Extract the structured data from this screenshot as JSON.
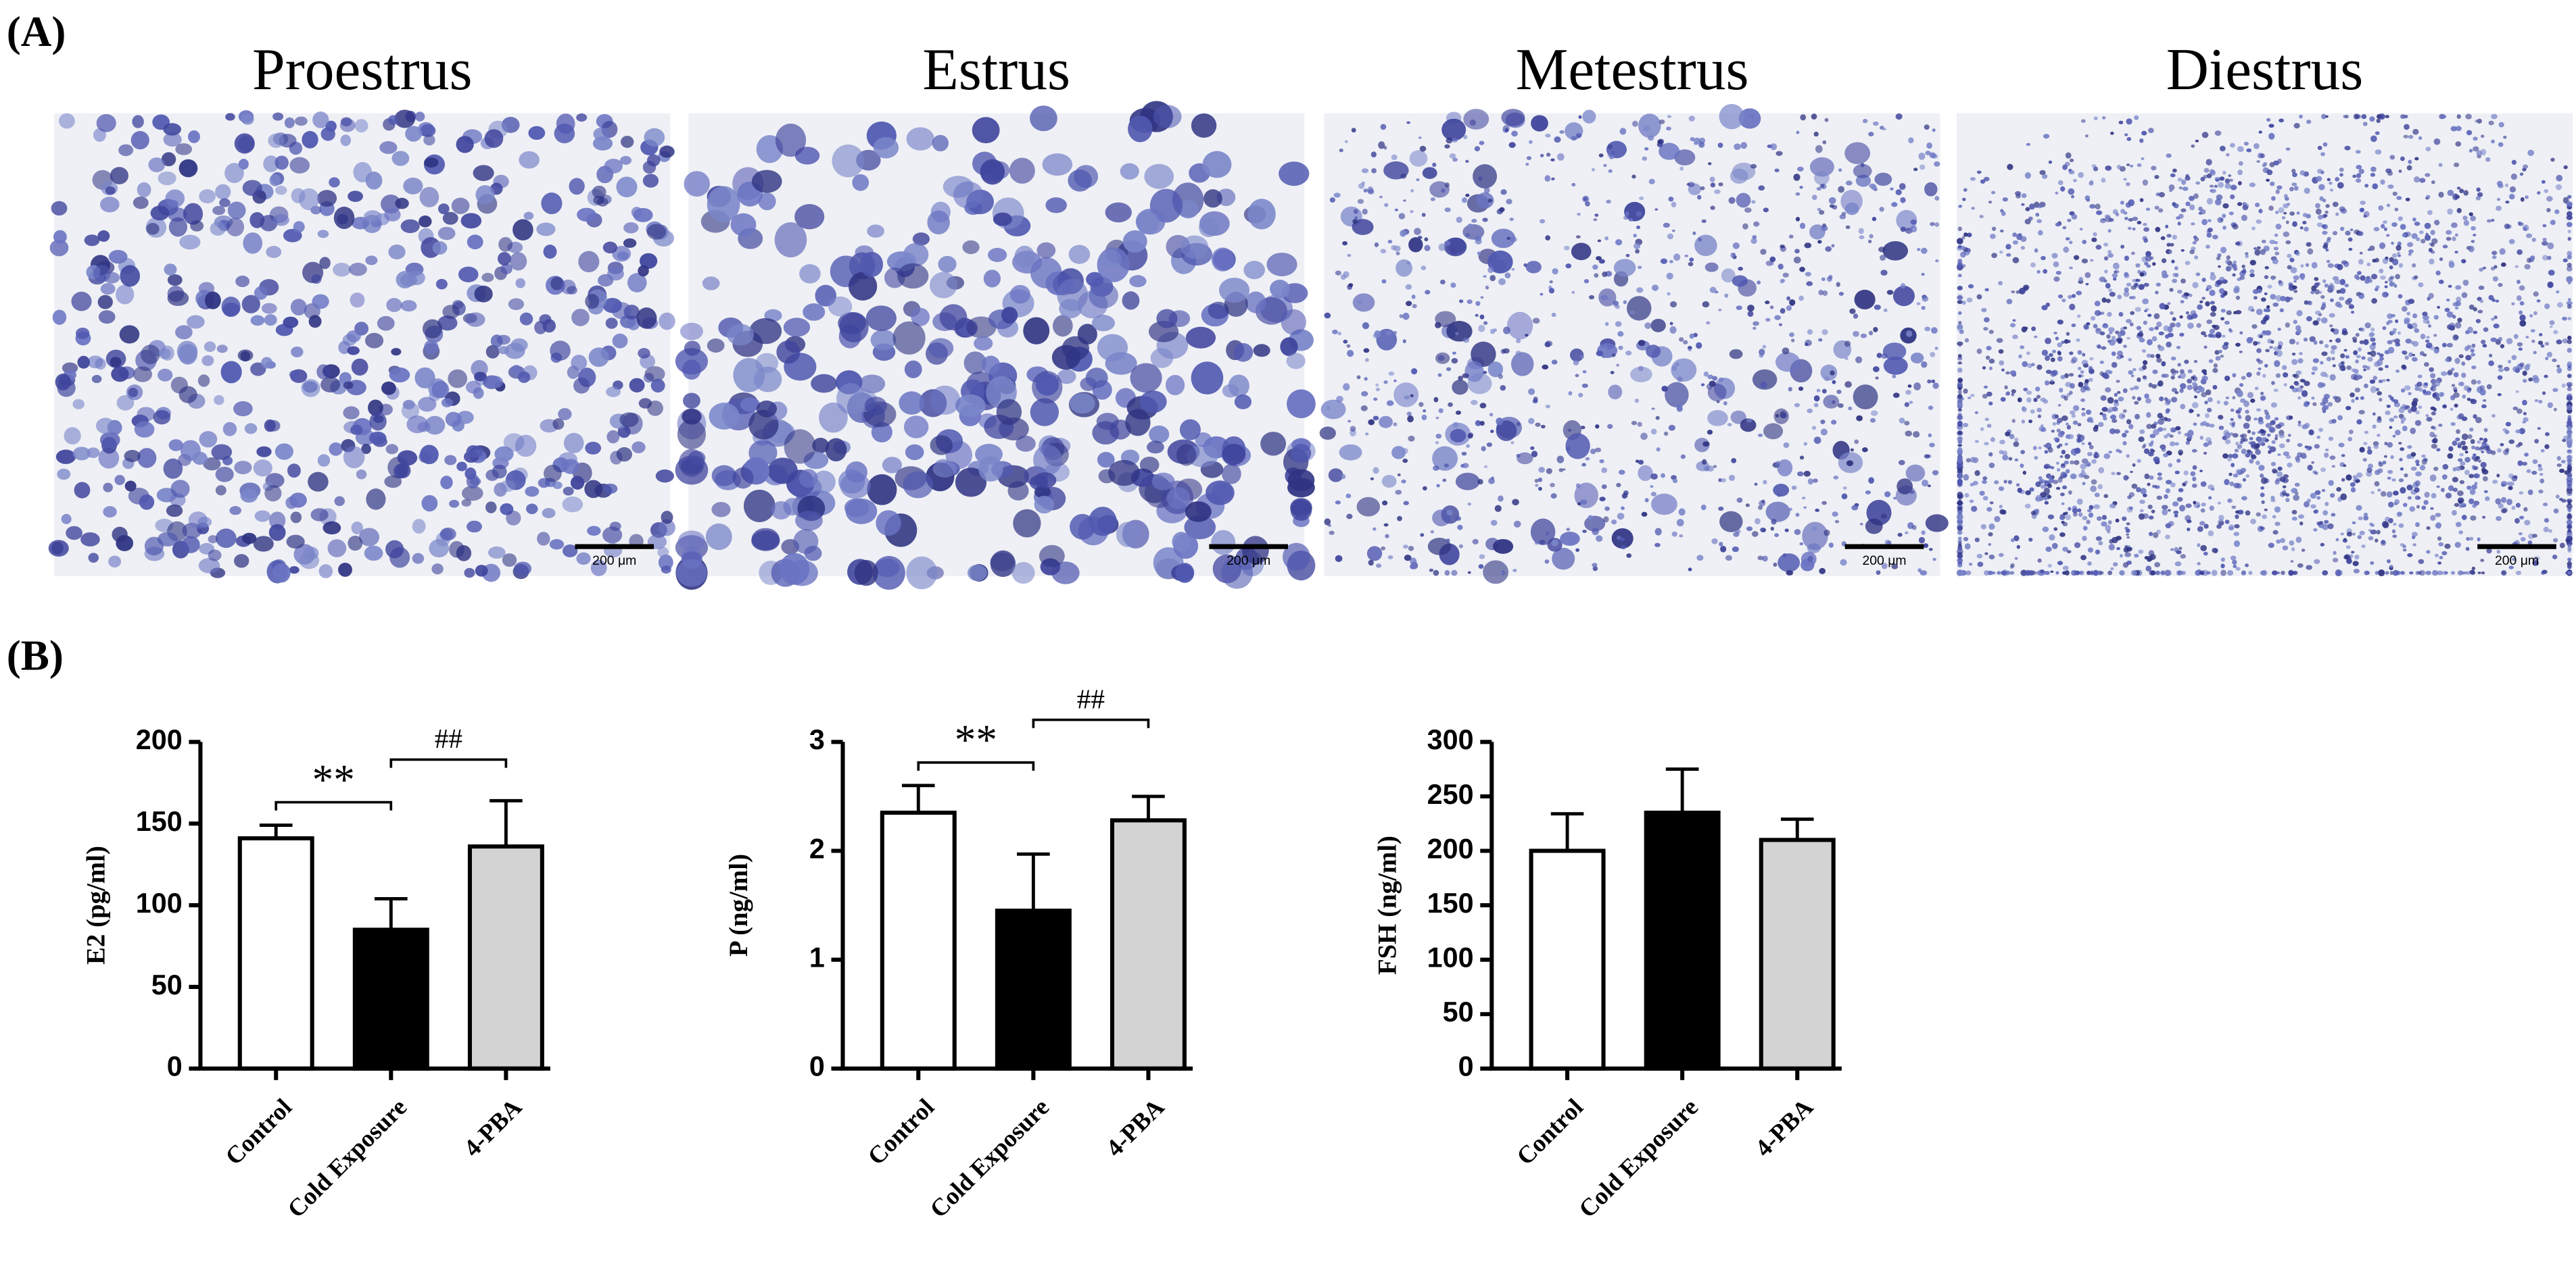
{
  "panel_a": {
    "label": "(A)",
    "stages": [
      "Proestrus",
      "Estrus",
      "Metestrus",
      "Diestrus"
    ],
    "scale_bar": "200 μm"
  },
  "panel_b": {
    "label": "(B)"
  },
  "chart_data": [
    {
      "type": "bar",
      "ylabel": "E2 (pg/ml)",
      "categories": [
        "Control",
        "Cold Exposure",
        "4-PBA"
      ],
      "values": [
        141,
        85,
        136
      ],
      "errors": [
        8,
        19,
        28
      ],
      "colors": [
        "#ffffff",
        "#000000",
        "#d3d3d3"
      ],
      "ylim": [
        0,
        200
      ],
      "yticks": [
        0,
        50,
        100,
        150,
        200
      ],
      "annotations": [
        {
          "text": "**",
          "between": [
            "Control",
            "Cold Exposure"
          ]
        },
        {
          "text": "##",
          "between": [
            "Cold Exposure",
            "4-PBA"
          ]
        }
      ]
    },
    {
      "type": "bar",
      "ylabel": "P (ng/ml)",
      "categories": [
        "Control",
        "Cold Exposure",
        "4-PBA"
      ],
      "values": [
        2.35,
        1.45,
        2.28
      ],
      "errors": [
        0.25,
        0.52,
        0.22
      ],
      "colors": [
        "#ffffff",
        "#000000",
        "#d3d3d3"
      ],
      "ylim": [
        0,
        3
      ],
      "yticks": [
        0,
        1,
        2,
        3
      ],
      "annotations": [
        {
          "text": "**",
          "between": [
            "Control",
            "Cold Exposure"
          ]
        },
        {
          "text": "##",
          "between": [
            "Cold Exposure",
            "4-PBA"
          ]
        }
      ]
    },
    {
      "type": "bar",
      "ylabel": "FSH (ng/ml)",
      "categories": [
        "Control",
        "Cold Exposure",
        "4-PBA"
      ],
      "values": [
        200,
        235,
        210
      ],
      "errors": [
        34,
        40,
        19
      ],
      "colors": [
        "#ffffff",
        "#000000",
        "#d3d3d3"
      ],
      "ylim": [
        0,
        300
      ],
      "yticks": [
        0,
        50,
        100,
        150,
        200,
        250,
        300
      ]
    }
  ]
}
